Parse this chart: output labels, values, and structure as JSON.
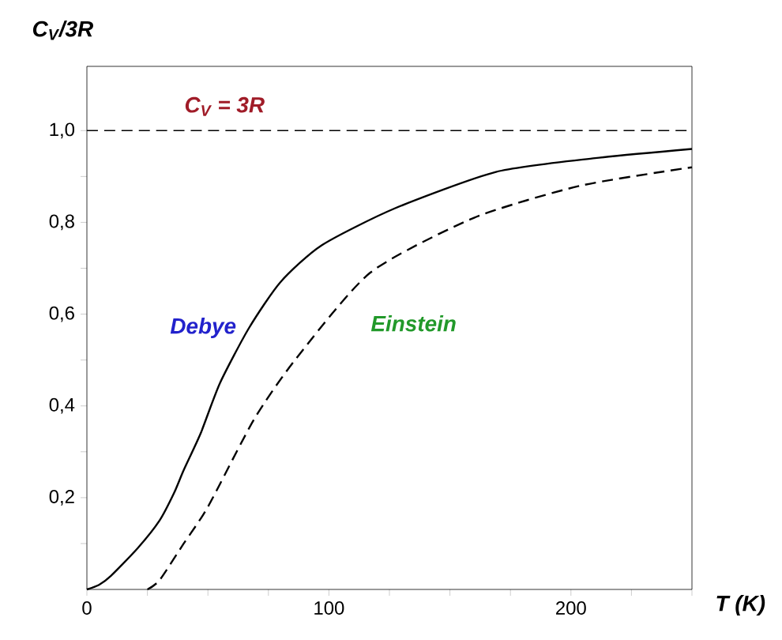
{
  "chart_data": {
    "type": "line",
    "xlabel": "T (K)",
    "ylabel": "C$_{V}$/3R",
    "xlim": [
      0,
      250
    ],
    "ylim": [
      0,
      1.14
    ],
    "xticks": [
      0,
      {
        "value": 25,
        "label": null
      },
      {
        "value": 50,
        "label": null
      },
      {
        "value": 75,
        "label": null
      },
      100,
      {
        "value": 125,
        "label": null
      },
      {
        "value": 150,
        "label": null
      },
      {
        "value": 175,
        "label": null
      },
      200,
      {
        "value": 225,
        "label": null
      },
      {
        "value": 250,
        "label": null
      }
    ],
    "yticks": [
      {
        "value": 0.1,
        "label": null
      },
      {
        "value": 0.2,
        "label": "0,2"
      },
      {
        "value": 0.3,
        "label": null
      },
      {
        "value": 0.4,
        "label": "0,4"
      },
      {
        "value": 0.5,
        "label": null
      },
      {
        "value": 0.6,
        "label": "0,6"
      },
      {
        "value": 0.7,
        "label": null
      },
      {
        "value": 0.8,
        "label": "0,8"
      },
      {
        "value": 0.9,
        "label": null
      },
      {
        "value": 1.0,
        "label": "1,0"
      }
    ],
    "ref_lines": [
      {
        "axis": "y",
        "value": 1.0,
        "color": "#000000",
        "line_style": "dashed"
      }
    ],
    "annotations": [
      "C$_{V}$ = 3R"
    ],
    "grid": false,
    "series": [
      {
        "name": "Debye",
        "color": "#000000",
        "line_style": "solid",
        "x": [
          0,
          5,
          10,
          21,
          30,
          36,
          40,
          47,
          55,
          67,
          80,
          97,
          127,
          169,
          210,
          250
        ],
        "values": [
          0,
          0.01,
          0.03,
          0.09,
          0.15,
          0.21,
          0.26,
          0.34,
          0.45,
          0.57,
          0.67,
          0.75,
          0.83,
          0.91,
          0.94,
          0.96
        ]
      },
      {
        "name": "Einstein",
        "color": "#000000",
        "line_style": "dashed",
        "x": [
          25,
          30,
          40,
          50,
          69,
          86,
          117,
          160,
          204,
          250
        ],
        "values": [
          0,
          0.02,
          0.1,
          0.18,
          0.37,
          0.5,
          0.69,
          0.81,
          0.88,
          0.92
        ]
      }
    ]
  }
}
